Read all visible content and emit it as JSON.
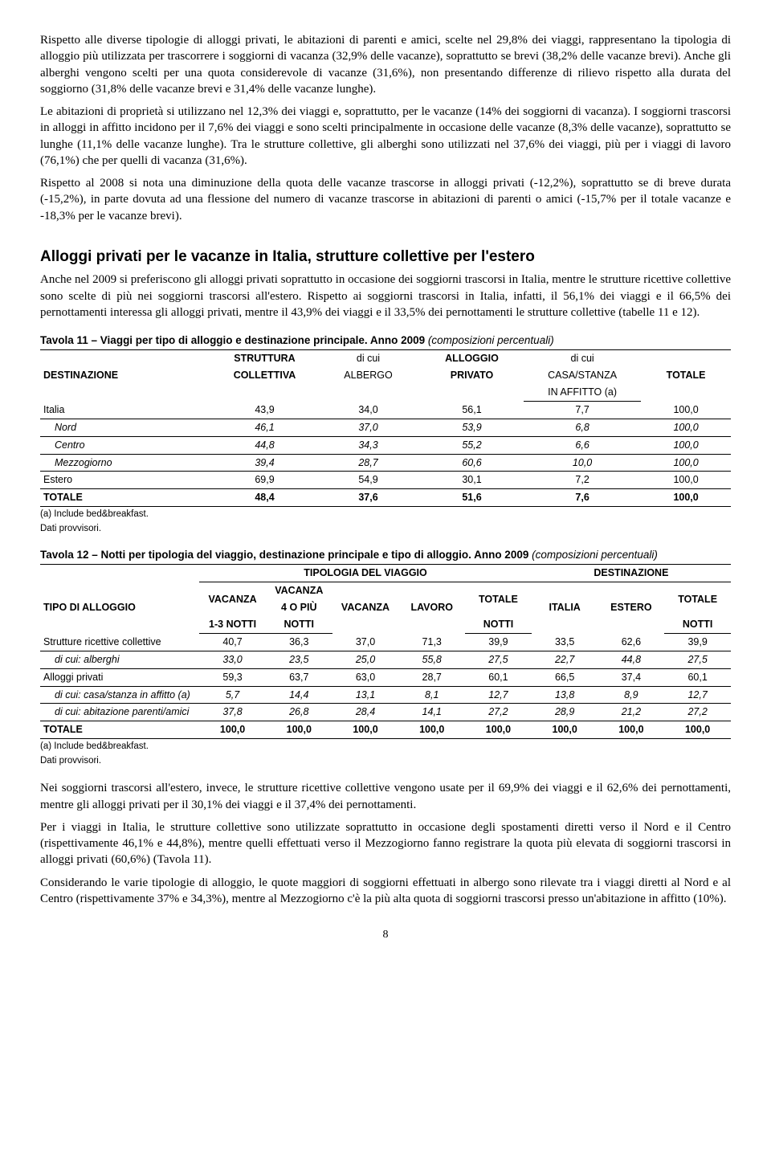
{
  "paragraphs": {
    "p1": "Rispetto alle diverse tipologie di alloggi privati, le abitazioni di parenti e amici, scelte nel 29,8% dei viaggi, rappresentano la tipologia di alloggio più utilizzata per trascorrere i soggiorni di vacanza (32,9% delle vacanze), soprattutto se brevi (38,2% delle vacanze brevi). Anche gli alberghi vengono scelti per una quota considerevole di vacanze (31,6%), non presentando differenze di rilievo rispetto alla durata del soggiorno (31,8% delle vacanze brevi e 31,4% delle vacanze lunghe).",
    "p2": "Le abitazioni di proprietà si utilizzano nel 12,3% dei viaggi e, soprattutto, per le vacanze (14% dei soggiorni di vacanza). I soggiorni trascorsi in alloggi in affitto incidono per il 7,6% dei viaggi e sono scelti principalmente in occasione delle vacanze (8,3% delle vacanze), soprattutto se lunghe (11,1% delle vacanze lunghe). Tra le strutture collettive, gli alberghi sono utilizzati nel 37,6% dei viaggi, più per i viaggi di lavoro (76,1%) che per quelli di vacanza (31,6%).",
    "p3": "Rispetto al 2008 si nota una diminuzione della quota delle vacanze trascorse in alloggi privati (-12,2%), soprattutto se di breve durata (-15,2%), in parte dovuta ad una flessione del numero di vacanze trascorse in abitazioni di parenti o amici (-15,7% per il totale vacanze e -18,3% per le vacanze brevi).",
    "p4": "Anche nel 2009 si preferiscono gli alloggi privati soprattutto in occasione dei soggiorni trascorsi in Italia, mentre le strutture ricettive collettive sono scelte di più nei soggiorni trascorsi all'estero. Rispetto ai soggiorni trascorsi in Italia, infatti, il 56,1% dei viaggi e il 66,5% dei pernottamenti interessa gli alloggi privati, mentre il 43,9% dei viaggi e il 33,5% dei pernottamenti le strutture collettive (tabelle 11 e 12).",
    "p5": "Nei soggiorni trascorsi all'estero, invece, le strutture ricettive collettive vengono usate per il 69,9% dei viaggi e il 62,6% dei pernottamenti, mentre gli alloggi privati per il 30,1% dei viaggi e il 37,4% dei pernottamenti.",
    "p6": "Per i viaggi in Italia, le strutture collettive sono utilizzate soprattutto in occasione degli spostamenti diretti verso il Nord e il Centro (rispettivamente 46,1% e 44,8%), mentre quelli effettuati verso il Mezzogiorno fanno registrare la quota più elevata di soggiorni trascorsi in alloggi privati (60,6%) (Tavola 11).",
    "p7": "Considerando le varie tipologie di alloggio, le quote maggiori di soggiorni effettuati in albergo sono rilevate tra i viaggi diretti al Nord e al Centro (rispettivamente 37% e 34,3%), mentre al Mezzogiorno c'è la più alta quota di soggiorni trascorsi presso un'abitazione in affitto (10%)."
  },
  "section_title": "Alloggi privati per le vacanze in Italia, strutture collettive per l'estero",
  "table11": {
    "title_main": "Tavola 11 – Viaggi per tipo di alloggio e destinazione principale. Anno 2009 ",
    "title_sub": "(composizioni percentuali)",
    "headers": {
      "c0": "DESTINAZIONE",
      "c1a": "STRUTTURA",
      "c1b": "COLLETTIVA",
      "c2a": "di cui",
      "c2b": "ALBERGO",
      "c3a": "ALLOGGIO",
      "c3b": "PRIVATO",
      "c4a": "di cui",
      "c4b": "CASA/STANZA",
      "c4c": "IN AFFITTO (a)",
      "c5": "TOTALE"
    },
    "rows": [
      {
        "label": "Italia",
        "indent": false,
        "italic": false,
        "v": [
          "43,9",
          "34,0",
          "56,1",
          "7,7",
          "100,0"
        ],
        "line": true
      },
      {
        "label": "Nord",
        "indent": true,
        "italic": true,
        "v": [
          "46,1",
          "37,0",
          "53,9",
          "6,8",
          "100,0"
        ],
        "line": true
      },
      {
        "label": "Centro",
        "indent": true,
        "italic": true,
        "v": [
          "44,8",
          "34,3",
          "55,2",
          "6,6",
          "100,0"
        ],
        "line": true
      },
      {
        "label": "Mezzogiorno",
        "indent": true,
        "italic": true,
        "v": [
          "39,4",
          "28,7",
          "60,6",
          "10,0",
          "100,0"
        ],
        "line": true
      },
      {
        "label": "Estero",
        "indent": false,
        "italic": false,
        "v": [
          "69,9",
          "54,9",
          "30,1",
          "7,2",
          "100,0"
        ],
        "line": false
      }
    ],
    "total": {
      "label": "TOTALE",
      "v": [
        "48,4",
        "37,6",
        "51,6",
        "7,6",
        "100,0"
      ]
    },
    "footnote1": "(a) Include bed&breakfast.",
    "footnote2": "Dati provvisori."
  },
  "table12": {
    "title_main": "Tavola 12 – Notti per tipologia del viaggio, destinazione principale e tipo di alloggio. Anno 2009 ",
    "title_sub": "(composizioni percentuali)",
    "group_headers": {
      "g1": "TIPOLOGIA DEL VIAGGIO",
      "g2": "DESTINAZIONE"
    },
    "headers": {
      "c0": "TIPO DI ALLOGGIO",
      "c1a": "VACANZA",
      "c1b": "1-3 NOTTI",
      "c2a": "VACANZA",
      "c2b": "4 O PIÙ",
      "c2c": "NOTTI",
      "c3": "VACANZA",
      "c4": "LAVORO",
      "c5a": "TOTALE",
      "c5b": "NOTTI",
      "c6": "ITALIA",
      "c7": "ESTERO",
      "c8a": "TOTALE",
      "c8b": "NOTTI"
    },
    "rows": [
      {
        "label": "Strutture ricettive collettive",
        "indent": false,
        "italic": false,
        "v": [
          "40,7",
          "36,3",
          "37,0",
          "71,3",
          "39,9",
          "33,5",
          "62,6",
          "39,9"
        ],
        "line": true
      },
      {
        "label": "di cui: alberghi",
        "indent": true,
        "italic": true,
        "v": [
          "33,0",
          "23,5",
          "25,0",
          "55,8",
          "27,5",
          "22,7",
          "44,8",
          "27,5"
        ],
        "line": true
      },
      {
        "label": "Alloggi privati",
        "indent": false,
        "italic": false,
        "v": [
          "59,3",
          "63,7",
          "63,0",
          "28,7",
          "60,1",
          "66,5",
          "37,4",
          "60,1"
        ],
        "line": true
      },
      {
        "label": "di cui: casa/stanza in affitto (a)",
        "indent": true,
        "italic": true,
        "v": [
          "5,7",
          "14,4",
          "13,1",
          "8,1",
          "12,7",
          "13,8",
          "8,9",
          "12,7"
        ],
        "line": true
      },
      {
        "label": "di cui: abitazione parenti/amici",
        "indent": true,
        "italic": true,
        "v": [
          "37,8",
          "26,8",
          "28,4",
          "14,1",
          "27,2",
          "28,9",
          "21,2",
          "27,2"
        ],
        "line": false
      }
    ],
    "total": {
      "label": "TOTALE",
      "v": [
        "100,0",
        "100,0",
        "100,0",
        "100,0",
        "100,0",
        "100,0",
        "100,0",
        "100,0"
      ]
    },
    "footnote1": "(a) Include bed&breakfast.",
    "footnote2": "Dati provvisori."
  },
  "page_number": "8"
}
